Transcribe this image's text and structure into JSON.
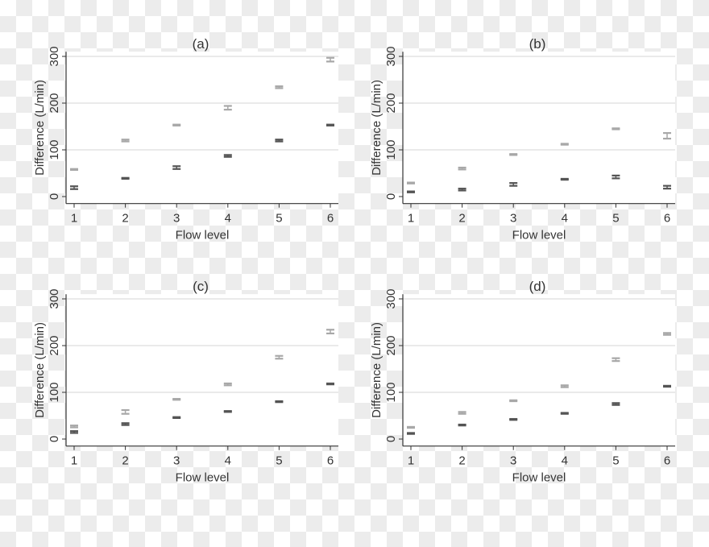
{
  "chart_data": [
    {
      "type": "scatter",
      "title": "(a)",
      "xlabel": "Flow level",
      "ylabel": "Difference (L/min)",
      "categories": [
        1,
        2,
        3,
        4,
        5,
        6
      ],
      "ylim": [
        -15,
        310
      ],
      "yticks": [
        0,
        100,
        200,
        300
      ],
      "grid": true,
      "series": [
        {
          "color": "#a8a8a8",
          "values": [
            58,
            120,
            153,
            190,
            234,
            293
          ],
          "err": [
            1,
            2,
            1,
            4,
            2,
            4
          ]
        },
        {
          "color": "#555555",
          "values": [
            19,
            39,
            62,
            87,
            120,
            153
          ],
          "err": [
            3,
            1,
            3,
            2,
            2,
            1
          ]
        }
      ]
    },
    {
      "type": "scatter",
      "title": "(b)",
      "xlabel": "Flow level",
      "ylabel": "Difference (L/min)",
      "categories": [
        1,
        2,
        3,
        4,
        5,
        6
      ],
      "ylim": [
        -15,
        310
      ],
      "yticks": [
        0,
        100,
        200,
        300
      ],
      "grid": true,
      "series": [
        {
          "color": "#a8a8a8",
          "values": [
            29,
            60,
            90,
            112,
            145,
            130
          ],
          "err": [
            1,
            2,
            1,
            1,
            1,
            6
          ]
        },
        {
          "color": "#555555",
          "values": [
            10,
            15,
            26,
            37,
            42,
            20
          ],
          "err": [
            1,
            2,
            3,
            1,
            3,
            3
          ]
        }
      ]
    },
    {
      "type": "scatter",
      "title": "(c)",
      "xlabel": "Flow level",
      "ylabel": "Difference (L/min)",
      "categories": [
        1,
        2,
        3,
        4,
        5,
        6
      ],
      "ylim": [
        -15,
        310
      ],
      "yticks": [
        0,
        100,
        200,
        300
      ],
      "grid": true,
      "series": [
        {
          "color": "#a8a8a8",
          "values": [
            27,
            58,
            85,
            117,
            175,
            230
          ],
          "err": [
            2,
            4,
            1,
            2,
            3,
            4
          ]
        },
        {
          "color": "#555555",
          "values": [
            15,
            32,
            46,
            59,
            80,
            118
          ],
          "err": [
            2,
            2,
            1,
            1,
            1,
            1
          ]
        }
      ]
    },
    {
      "type": "scatter",
      "title": "(d)",
      "xlabel": "Flow level",
      "ylabel": "Difference (L/min)",
      "categories": [
        1,
        2,
        3,
        4,
        5,
        6
      ],
      "ylim": [
        -15,
        310
      ],
      "yticks": [
        0,
        100,
        200,
        300
      ],
      "grid": true,
      "series": [
        {
          "color": "#a8a8a8",
          "values": [
            25,
            56,
            82,
            113,
            170,
            225
          ],
          "err": [
            1,
            2,
            1,
            2,
            3,
            2
          ]
        },
        {
          "color": "#555555",
          "values": [
            12,
            30,
            42,
            55,
            75,
            113
          ],
          "err": [
            1,
            1,
            1,
            1,
            2,
            1
          ]
        }
      ]
    }
  ]
}
